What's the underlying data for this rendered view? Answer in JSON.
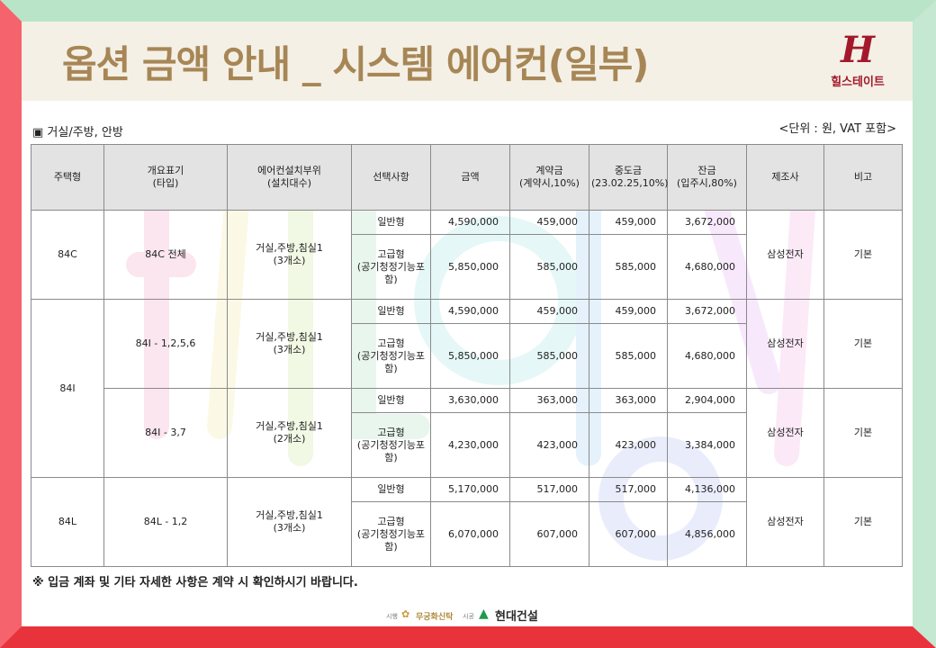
{
  "header": {
    "title": "옵션 금액 안내 _ 시스템 에어컨(일부)",
    "logo_mark": "H",
    "logo_text": "힐스테이트"
  },
  "section_label": "▣ 거실/주방, 안방",
  "unit_label": "<단위 : 원, VAT 포함>",
  "table": {
    "headers": {
      "housing_type": "주택형",
      "outline_type": "개요표기\n(타입)",
      "install_location": "에어컨설치부위\n(설치대수)",
      "option": "선택사항",
      "amount": "금액",
      "deposit": "계약금\n(계약시,10%)",
      "interim": "중도금\n(23.02.25,10%)",
      "balance": "잔금\n(입주시,80%)",
      "manufacturer": "제조사",
      "remarks": "비고"
    },
    "groups": [
      {
        "housing_type": "84C",
        "subgroups": [
          {
            "outline_type": "84C 전체",
            "install_location": "거실,주방,침실1\n(3개소)",
            "manufacturer": "삼성전자",
            "remarks": "기본",
            "rows": [
              {
                "option": "일반형",
                "amount": "4,590,000",
                "deposit": "459,000",
                "interim": "459,000",
                "balance": "3,672,000"
              },
              {
                "option": "고급형\n(공기청정기능포함)",
                "amount": "5,850,000",
                "deposit": "585,000",
                "interim": "585,000",
                "balance": "4,680,000"
              }
            ]
          }
        ]
      },
      {
        "housing_type": "84I",
        "subgroups": [
          {
            "outline_type": "84I - 1,2,5,6",
            "install_location": "거실,주방,침실1\n(3개소)",
            "manufacturer": "삼성전자",
            "remarks": "기본",
            "rows": [
              {
                "option": "일반형",
                "amount": "4,590,000",
                "deposit": "459,000",
                "interim": "459,000",
                "balance": "3,672,000"
              },
              {
                "option": "고급형\n(공기청정기능포함)",
                "amount": "5,850,000",
                "deposit": "585,000",
                "interim": "585,000",
                "balance": "4,680,000"
              }
            ]
          },
          {
            "outline_type": "84I - 3,7",
            "install_location": "거실,주방,침실1\n(2개소)",
            "manufacturer": "삼성전자",
            "remarks": "기본",
            "rows": [
              {
                "option": "일반형",
                "amount": "3,630,000",
                "deposit": "363,000",
                "interim": "363,000",
                "balance": "2,904,000"
              },
              {
                "option": "고급형\n(공기청정기능포함)",
                "amount": "4,230,000",
                "deposit": "423,000",
                "interim": "423,000",
                "balance": "3,384,000"
              }
            ]
          }
        ]
      },
      {
        "housing_type": "84L",
        "subgroups": [
          {
            "outline_type": "84L - 1,2",
            "install_location": "거실,주방,침실1\n(3개소)",
            "manufacturer": "삼성전자",
            "remarks": "기본",
            "rows": [
              {
                "option": "일반형",
                "amount": "5,170,000",
                "deposit": "517,000",
                "interim": "517,000",
                "balance": "4,136,000"
              },
              {
                "option": "고급형\n(공기청정기능포함)",
                "amount": "6,070,000",
                "deposit": "607,000",
                "interim": "607,000",
                "balance": "4,856,000"
              }
            ]
          }
        ]
      }
    ]
  },
  "note": "※ 입금 계좌 및 기타 자세한 사항은 계약 시 확인하시기 바랍니다.",
  "footer": {
    "developer_label": "시행",
    "developer_name": "무궁화신탁",
    "builder_label": "시공",
    "builder_name": "현대건설"
  },
  "colors": {
    "frame_red": "#f1565e",
    "frame_green": "#b6e3c7",
    "title_gold": "#a78656",
    "logo_red": "#a3192b"
  }
}
